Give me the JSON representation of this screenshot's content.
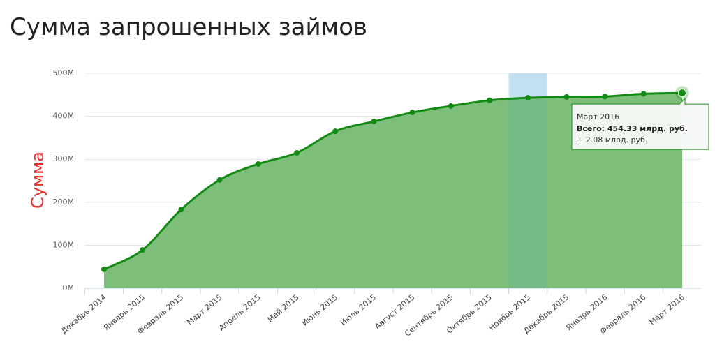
{
  "chart_data": {
    "type": "area",
    "title": "Сумма запрошенных займов",
    "y_label": "Сумма",
    "categories": [
      "Декабрь 2014",
      "Январь 2015",
      "Февраль 2015",
      "Март 2015",
      "Апрель 2015",
      "Май 2015",
      "Июнь 2015",
      "Июль 2015",
      "Август 2015",
      "Сентябрь 2015",
      "Октябрь 2015",
      "Ноябрь 2015",
      "Декабрь 2015",
      "Январь 2016",
      "Февраль 2016",
      "Март 2016"
    ],
    "values": [
      44,
      89,
      183,
      252,
      289,
      315,
      365,
      388,
      409,
      424,
      437,
      443,
      445,
      446,
      452.25,
      454.33
    ],
    "color": "#138a13",
    "fill": "#7dbf7a",
    "ylim": [
      0,
      500
    ],
    "yticks": [
      {
        "value": 0,
        "label": "0M"
      },
      {
        "value": 100,
        "label": "100M"
      },
      {
        "value": 200,
        "label": "200M"
      },
      {
        "value": 300,
        "label": "300M"
      },
      {
        "value": 400,
        "label": "400M"
      },
      {
        "value": 500,
        "label": "500M"
      }
    ],
    "grid": true,
    "highlighted_index": 11,
    "hover_index": 15,
    "tooltip": {
      "title": "Март 2016",
      "total": "Всего: 454.33 млрд. руб.",
      "change": "+ 2.08 млрд. руб."
    }
  }
}
